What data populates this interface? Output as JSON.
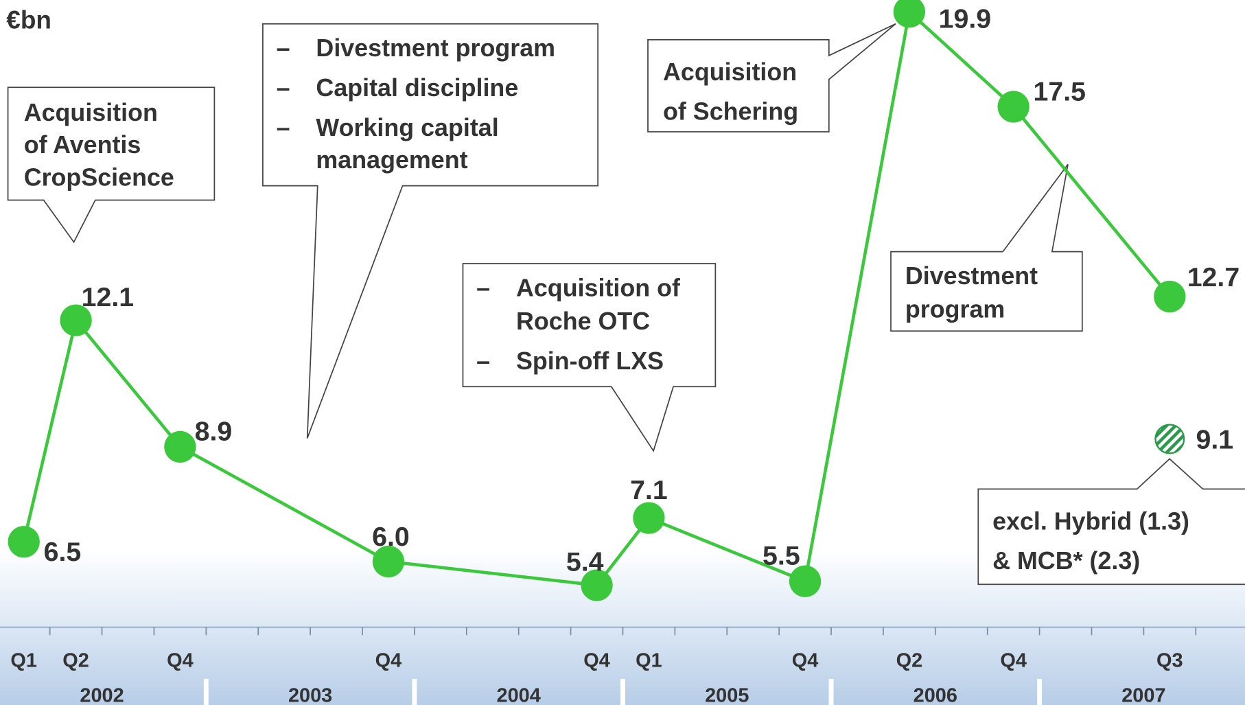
{
  "chart_data": {
    "type": "line",
    "title": "€bn",
    "years": [
      "2002",
      "2003",
      "2004",
      "2005",
      "2006",
      "2007"
    ],
    "x": [
      {
        "year": "2002",
        "quarter": "Q1"
      },
      {
        "year": "2002",
        "quarter": "Q2"
      },
      {
        "year": "2002",
        "quarter": "Q4"
      },
      {
        "year": "2003",
        "quarter": "Q4"
      },
      {
        "year": "2004",
        "quarter": "Q4"
      },
      {
        "year": "2005",
        "quarter": "Q1"
      },
      {
        "year": "2005",
        "quarter": "Q4"
      },
      {
        "year": "2006",
        "quarter": "Q2"
      },
      {
        "year": "2006",
        "quarter": "Q4"
      },
      {
        "year": "2007",
        "quarter": "Q3"
      }
    ],
    "series": [
      {
        "color": "#3cc83c",
        "values": [
          6.5,
          12.1,
          8.9,
          6.0,
          5.4,
          7.1,
          5.5,
          19.9,
          17.5,
          12.7
        ],
        "value_labels": [
          "6.5",
          "12.1",
          "8.9",
          "6.0",
          "5.4",
          "7.1",
          "5.5",
          "19.9",
          "17.5",
          "12.7"
        ]
      }
    ],
    "extra_point": {
      "year": "2007",
      "quarter": "Q3",
      "value": 9.1,
      "color": "#2a9a4a"
    },
    "ylim": [
      4.5,
      20.3
    ],
    "annotations": [
      {
        "lines": [
          "Acquisition",
          "of Aventis",
          "CropScience"
        ]
      },
      {
        "items": [
          {
            "bullet": "–",
            "lines": [
              "Divestment program"
            ]
          },
          {
            "bullet": "–",
            "lines": [
              "Capital discipline"
            ]
          },
          {
            "bullet": "–",
            "lines": [
              "Working capital",
              "management"
            ]
          }
        ]
      },
      {
        "items": [
          {
            "bullet": "–",
            "lines": [
              "Acquisition of",
              "Roche OTC"
            ]
          },
          {
            "bullet": "–",
            "lines": [
              "Spin-off LXS"
            ]
          }
        ]
      },
      {
        "lines": [
          "Acquisition",
          "of Schering"
        ]
      },
      {
        "lines": [
          "Divestment",
          "program"
        ]
      },
      {
        "lines": [
          "excl. Hybrid (1.3)",
          "& MCB* (2.3)"
        ]
      }
    ]
  }
}
